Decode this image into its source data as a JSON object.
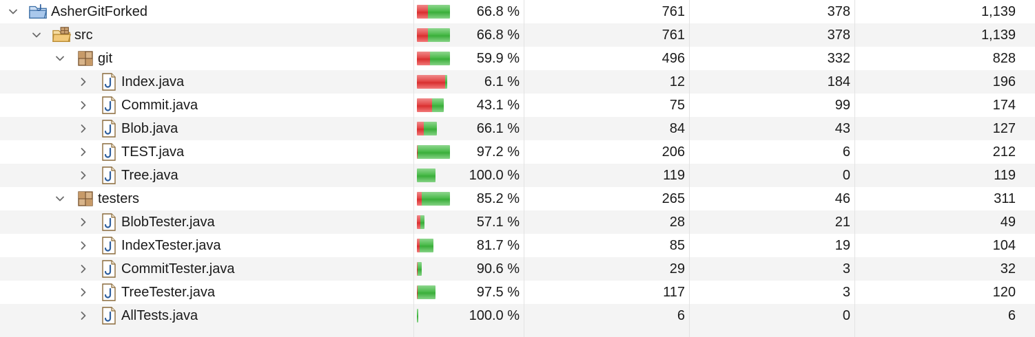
{
  "colors": {
    "covered": "#3aae3a",
    "missed": "#d92f2f",
    "row_alt": "#f4f4f4",
    "separator": "#e3e3e3"
  },
  "rows": [
    {
      "name": "AsherGitForked",
      "icon": "java-project-icon",
      "depth": 0,
      "expanded": true,
      "coverage": "66.8 %",
      "covered": "761",
      "missed": "378",
      "total": "1,139"
    },
    {
      "name": "src",
      "icon": "source-folder-icon",
      "depth": 1,
      "expanded": true,
      "coverage": "66.8 %",
      "covered": "761",
      "missed": "378",
      "total": "1,139"
    },
    {
      "name": "git",
      "icon": "package-icon",
      "depth": 2,
      "expanded": true,
      "coverage": "59.9 %",
      "covered": "496",
      "missed": "332",
      "total": "828"
    },
    {
      "name": "Index.java",
      "icon": "java-file-icon",
      "depth": 3,
      "expanded": false,
      "coverage": "6.1 %",
      "covered": "12",
      "missed": "184",
      "total": "196"
    },
    {
      "name": "Commit.java",
      "icon": "java-file-icon",
      "depth": 3,
      "expanded": false,
      "coverage": "43.1 %",
      "covered": "75",
      "missed": "99",
      "total": "174"
    },
    {
      "name": "Blob.java",
      "icon": "java-file-icon",
      "depth": 3,
      "expanded": false,
      "coverage": "66.1 %",
      "covered": "84",
      "missed": "43",
      "total": "127"
    },
    {
      "name": "TEST.java",
      "icon": "java-file-icon",
      "depth": 3,
      "expanded": false,
      "coverage": "97.2 %",
      "covered": "206",
      "missed": "6",
      "total": "212"
    },
    {
      "name": "Tree.java",
      "icon": "java-file-icon",
      "depth": 3,
      "expanded": false,
      "coverage": "100.0 %",
      "covered": "119",
      "missed": "0",
      "total": "119"
    },
    {
      "name": "testers",
      "icon": "package-icon",
      "depth": 2,
      "expanded": true,
      "coverage": "85.2 %",
      "covered": "265",
      "missed": "46",
      "total": "311"
    },
    {
      "name": "BlobTester.java",
      "icon": "java-file-icon",
      "depth": 3,
      "expanded": false,
      "coverage": "57.1 %",
      "covered": "28",
      "missed": "21",
      "total": "49"
    },
    {
      "name": "IndexTester.java",
      "icon": "java-file-icon",
      "depth": 3,
      "expanded": false,
      "coverage": "81.7 %",
      "covered": "85",
      "missed": "19",
      "total": "104"
    },
    {
      "name": "CommitTester.java",
      "icon": "java-file-icon",
      "depth": 3,
      "expanded": false,
      "coverage": "90.6 %",
      "covered": "29",
      "missed": "3",
      "total": "32"
    },
    {
      "name": "TreeTester.java",
      "icon": "java-file-icon",
      "depth": 3,
      "expanded": false,
      "coverage": "97.5 %",
      "covered": "117",
      "missed": "3",
      "total": "120"
    },
    {
      "name": "AllTests.java",
      "icon": "java-file-icon",
      "depth": 3,
      "expanded": false,
      "coverage": "100.0 %",
      "covered": "6",
      "missed": "0",
      "total": "6"
    }
  ]
}
